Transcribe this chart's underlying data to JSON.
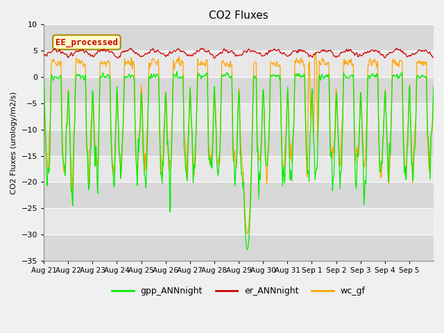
{
  "title": "CO2 Fluxes",
  "ylabel": "CO2 Fluxes (urology/m2/s)",
  "ylim": [
    -35,
    10
  ],
  "yticks": [
    -35,
    -30,
    -25,
    -20,
    -15,
    -10,
    -5,
    0,
    5,
    10
  ],
  "background_color": "#f0f0f0",
  "plot_bg_color": "#e8e8e8",
  "annotation_text": "EE_processed",
  "annotation_color": "#cc0000",
  "annotation_bg": "#ffffcc",
  "line_green": "#00ee00",
  "line_red": "#cc0000",
  "line_orange": "#ffa500",
  "legend_labels": [
    "gpp_ANNnight",
    "er_ANNnight",
    "wc_gf"
  ],
  "x_labels": [
    "Aug 21",
    "Aug 22",
    "Aug 23",
    "Aug 24",
    "Aug 25",
    "Aug 26",
    "Aug 27",
    "Aug 28",
    "Aug 29",
    "Aug 30",
    "Aug 31",
    "Sep 1",
    "Sep 2",
    "Sep 3",
    "Sep 4",
    "Sep 5"
  ],
  "figsize": [
    6.4,
    4.8
  ],
  "dpi": 100
}
